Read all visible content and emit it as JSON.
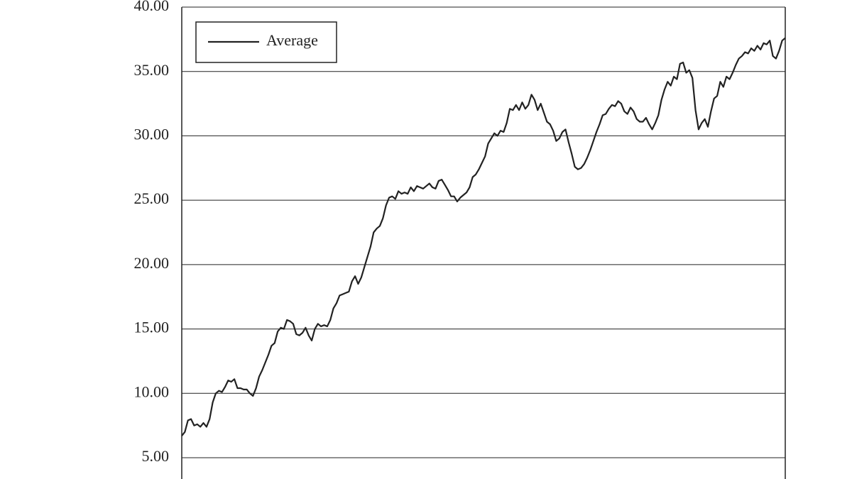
{
  "chart_data": {
    "type": "line",
    "series": [
      {
        "name": "Average",
        "color": "#222222",
        "values": [
          6.7,
          7.0,
          7.9,
          8.0,
          7.5,
          7.6,
          7.4,
          7.7,
          7.4,
          8.0,
          9.3,
          10.0,
          10.2,
          10.1,
          10.5,
          11.0,
          10.9,
          11.1,
          10.4,
          10.4,
          10.3,
          10.3,
          10.0,
          9.8,
          10.4,
          11.3,
          11.8,
          12.4,
          13.0,
          13.7,
          13.9,
          14.8,
          15.1,
          15.0,
          15.7,
          15.6,
          15.4,
          14.6,
          14.5,
          14.7,
          15.1,
          14.5,
          14.1,
          15.0,
          15.4,
          15.2,
          15.3,
          15.2,
          15.7,
          16.6,
          17.0,
          17.6,
          17.7,
          17.8,
          17.9,
          18.7,
          19.1,
          18.5,
          19.0,
          19.8,
          20.6,
          21.4,
          22.5,
          22.8,
          23.0,
          23.6,
          24.6,
          25.2,
          25.3,
          25.1,
          25.7,
          25.5,
          25.6,
          25.5,
          26.0,
          25.7,
          26.1,
          26.0,
          25.9,
          26.1,
          26.3,
          26.0,
          25.9,
          26.5,
          26.6,
          26.2,
          25.8,
          25.3,
          25.3,
          24.9,
          25.2,
          25.4,
          25.6,
          26.0,
          26.8,
          27.0,
          27.4,
          27.9,
          28.4,
          29.4,
          29.8,
          30.2,
          30.0,
          30.4,
          30.3,
          31.0,
          32.1,
          32.0,
          32.4,
          32.0,
          32.6,
          32.1,
          32.4,
          33.2,
          32.8,
          32.0,
          32.5,
          31.8,
          31.1,
          30.9,
          30.4,
          29.6,
          29.8,
          30.3,
          30.5,
          29.5,
          28.6,
          27.6,
          27.4,
          27.5,
          27.8,
          28.3,
          28.9,
          29.6,
          30.3,
          30.9,
          31.6,
          31.7,
          32.1,
          32.4,
          32.3,
          32.7,
          32.5,
          31.9,
          31.7,
          32.2,
          31.9,
          31.3,
          31.1,
          31.1,
          31.4,
          30.9,
          30.5,
          31.0,
          31.6,
          32.8,
          33.6,
          34.2,
          33.9,
          34.6,
          34.4,
          35.6,
          35.7,
          34.9,
          35.1,
          34.5,
          32.0,
          30.5,
          31.0,
          31.3,
          30.7,
          31.9,
          32.9,
          33.1,
          34.2,
          33.8,
          34.6,
          34.4,
          34.9,
          35.5,
          36.0,
          36.2,
          36.5,
          36.4,
          36.8,
          36.6,
          37.0,
          36.7,
          37.2,
          37.1,
          37.4,
          36.2,
          36.0,
          36.6,
          37.4,
          37.6
        ]
      }
    ],
    "ylim": [
      5,
      40
    ],
    "yticks": [
      {
        "value": 5,
        "label": "5.00"
      },
      {
        "value": 10,
        "label": "10.00"
      },
      {
        "value": 15,
        "label": "15.00"
      },
      {
        "value": 20,
        "label": "20.00"
      },
      {
        "value": 25,
        "label": "25.00"
      },
      {
        "value": 30,
        "label": "30.00"
      },
      {
        "value": 35,
        "label": "35.00"
      },
      {
        "value": 40,
        "label": "40.00"
      }
    ],
    "grid": true,
    "legend": "upper left"
  }
}
